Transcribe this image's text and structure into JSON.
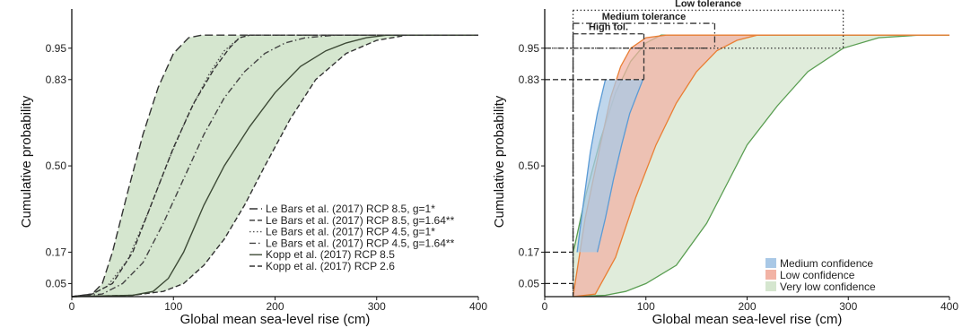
{
  "chart_data": [
    {
      "type": "line",
      "xlabel": "Global mean sea-level rise (cm)",
      "ylabel": "Cumulative probability",
      "xlim": [
        0,
        400
      ],
      "ylim": [
        0,
        1.1
      ],
      "x_ticks": [
        "0",
        "100",
        "200",
        "300",
        "400"
      ],
      "y_ticks": [
        "0.05",
        "0.17",
        "0.50",
        "0.83",
        "0.95"
      ],
      "y_tick_values": [
        0.05,
        0.17,
        0.5,
        0.83,
        0.95
      ],
      "legend_position": "bottom-right",
      "grid": false,
      "shaded_color": "#d5e6cf",
      "series": [
        {
          "name": "Le Bars et al. (2017) RCP 8.5, g=1*",
          "dash": "longdash",
          "color": "#333333",
          "x": [
            0,
            20,
            30,
            40,
            55,
            70,
            85,
            100,
            115,
            128,
            400
          ],
          "y": [
            0,
            0.01,
            0.05,
            0.17,
            0.4,
            0.62,
            0.8,
            0.93,
            0.99,
            1.0,
            1.0
          ]
        },
        {
          "name": "Le Bars et al. (2017) RCP 8.5, g=1.64**",
          "dash": "dash",
          "color": "#333333",
          "x": [
            0,
            60,
            90,
            110,
            130,
            150,
            170,
            190,
            215,
            240,
            270,
            300,
            330,
            400
          ],
          "y": [
            0,
            0.005,
            0.02,
            0.05,
            0.12,
            0.22,
            0.35,
            0.5,
            0.68,
            0.83,
            0.93,
            0.98,
            1.0,
            1.0
          ]
        },
        {
          "name": "Le Bars et al. (2017) RCP 4.5, g=1*",
          "dash": "dot",
          "color": "#555555",
          "x": [
            0,
            20,
            35,
            55,
            75,
            95,
            115,
            135,
            150,
            165,
            175,
            400
          ],
          "y": [
            0,
            0.01,
            0.04,
            0.14,
            0.32,
            0.52,
            0.7,
            0.85,
            0.94,
            0.99,
            1.0,
            1.0
          ]
        },
        {
          "name": "Le Bars et al. (2017) RCP 4.5, g=1.64**",
          "dash": "dashdot",
          "color": "#444444",
          "x": [
            0,
            30,
            50,
            70,
            90,
            110,
            130,
            150,
            170,
            190,
            210,
            230,
            260,
            400
          ],
          "y": [
            0,
            0.01,
            0.05,
            0.13,
            0.28,
            0.45,
            0.62,
            0.76,
            0.86,
            0.93,
            0.97,
            0.99,
            1.0,
            1.0
          ]
        },
        {
          "name": "Kopp et al. (2017) RCP 8.5",
          "dash": "solid",
          "color": "#3d4a36",
          "x": [
            0,
            60,
            80,
            95,
            110,
            130,
            150,
            175,
            200,
            225,
            250,
            270,
            290,
            310,
            400
          ],
          "y": [
            0,
            0.005,
            0.02,
            0.07,
            0.17,
            0.35,
            0.5,
            0.65,
            0.78,
            0.88,
            0.94,
            0.97,
            0.99,
            1.0,
            1.0
          ]
        },
        {
          "name": "Kopp et al. (2017) RCP 2.6",
          "dash": "dash",
          "color": "#333333",
          "x": [
            0,
            20,
            40,
            60,
            80,
            100,
            120,
            140,
            155,
            165,
            175,
            400
          ],
          "y": [
            0,
            0.01,
            0.05,
            0.17,
            0.37,
            0.57,
            0.74,
            0.87,
            0.95,
            0.99,
            1.0,
            1.0
          ]
        }
      ],
      "band_left_series": 0,
      "band_right_series": 1
    },
    {
      "type": "area",
      "xlabel": "Global mean sea-level rise (cm)",
      "ylabel": "Cumulative probability",
      "xlim": [
        0,
        400
      ],
      "ylim": [
        0,
        1.1
      ],
      "x_ticks": [
        "0",
        "100",
        "200",
        "300",
        "400"
      ],
      "y_ticks": [
        "0.05",
        "0.17",
        "0.50",
        "0.83",
        "0.95"
      ],
      "y_tick_values": [
        0.05,
        0.17,
        0.5,
        0.83,
        0.95
      ],
      "legend_position": "bottom-right",
      "grid": false,
      "bands": [
        {
          "name": "Very low confidence",
          "fill": "#d5e6cf",
          "line": "#5a9e52",
          "left": {
            "x": [
              28,
              30,
              40,
              55,
              70,
              85,
              100,
              115,
              400
            ],
            "y": [
              0.17,
              0.2,
              0.38,
              0.6,
              0.78,
              0.9,
              0.97,
              1.0,
              1.0
            ]
          },
          "right": {
            "x": [
              28,
              60,
              80,
              100,
              130,
              160,
              180,
              200,
              230,
              260,
              295,
              330,
              370,
              400
            ],
            "y": [
              0,
              0.005,
              0.02,
              0.05,
              0.12,
              0.28,
              0.43,
              0.58,
              0.73,
              0.86,
              0.95,
              0.99,
              1.0,
              1.0
            ]
          }
        },
        {
          "name": "Low confidence",
          "fill": "#f2b3a5",
          "line": "#e97f34",
          "left": {
            "x": [
              28,
              30,
              40,
              55,
              65,
              75,
              85,
              100,
              120,
              400
            ],
            "y": [
              0,
              0.05,
              0.3,
              0.58,
              0.76,
              0.88,
              0.95,
              0.99,
              1.0,
              1.0
            ]
          },
          "right": {
            "x": [
              28,
              50,
              70,
              90,
              110,
              130,
              150,
              170,
              190,
              210,
              222
            ],
            "y": [
              0,
              0.01,
              0.15,
              0.38,
              0.58,
              0.74,
              0.86,
              0.94,
              0.98,
              1.0,
              1.0
            ]
          }
        },
        {
          "name": "Medium confidence",
          "fill": "#a9c8e6",
          "line": "#5b9bd5",
          "left": {
            "x": [
              32,
              38,
              45,
              52,
              60
            ],
            "y": [
              0.17,
              0.35,
              0.55,
              0.7,
              0.83
            ]
          },
          "right": {
            "x": [
              52,
              60,
              68,
              76,
              84,
              92,
              97
            ],
            "y": [
              0.17,
              0.3,
              0.45,
              0.58,
              0.7,
              0.78,
              0.83
            ]
          }
        }
      ],
      "tolerance_boxes": [
        {
          "label": "Low tolerance",
          "x0": 28,
          "x1": 295,
          "top": 1.095,
          "y": 0.95,
          "dash": "dot"
        },
        {
          "label": "Medium tolerance",
          "x0": 28,
          "x1": 168,
          "top": 1.045,
          "y": 0.95,
          "dash": "dashdot"
        },
        {
          "label": "High tol.",
          "x0": 28,
          "x1": 98,
          "top": 1.005,
          "y": 0.83,
          "dash": "dash"
        }
      ]
    }
  ]
}
